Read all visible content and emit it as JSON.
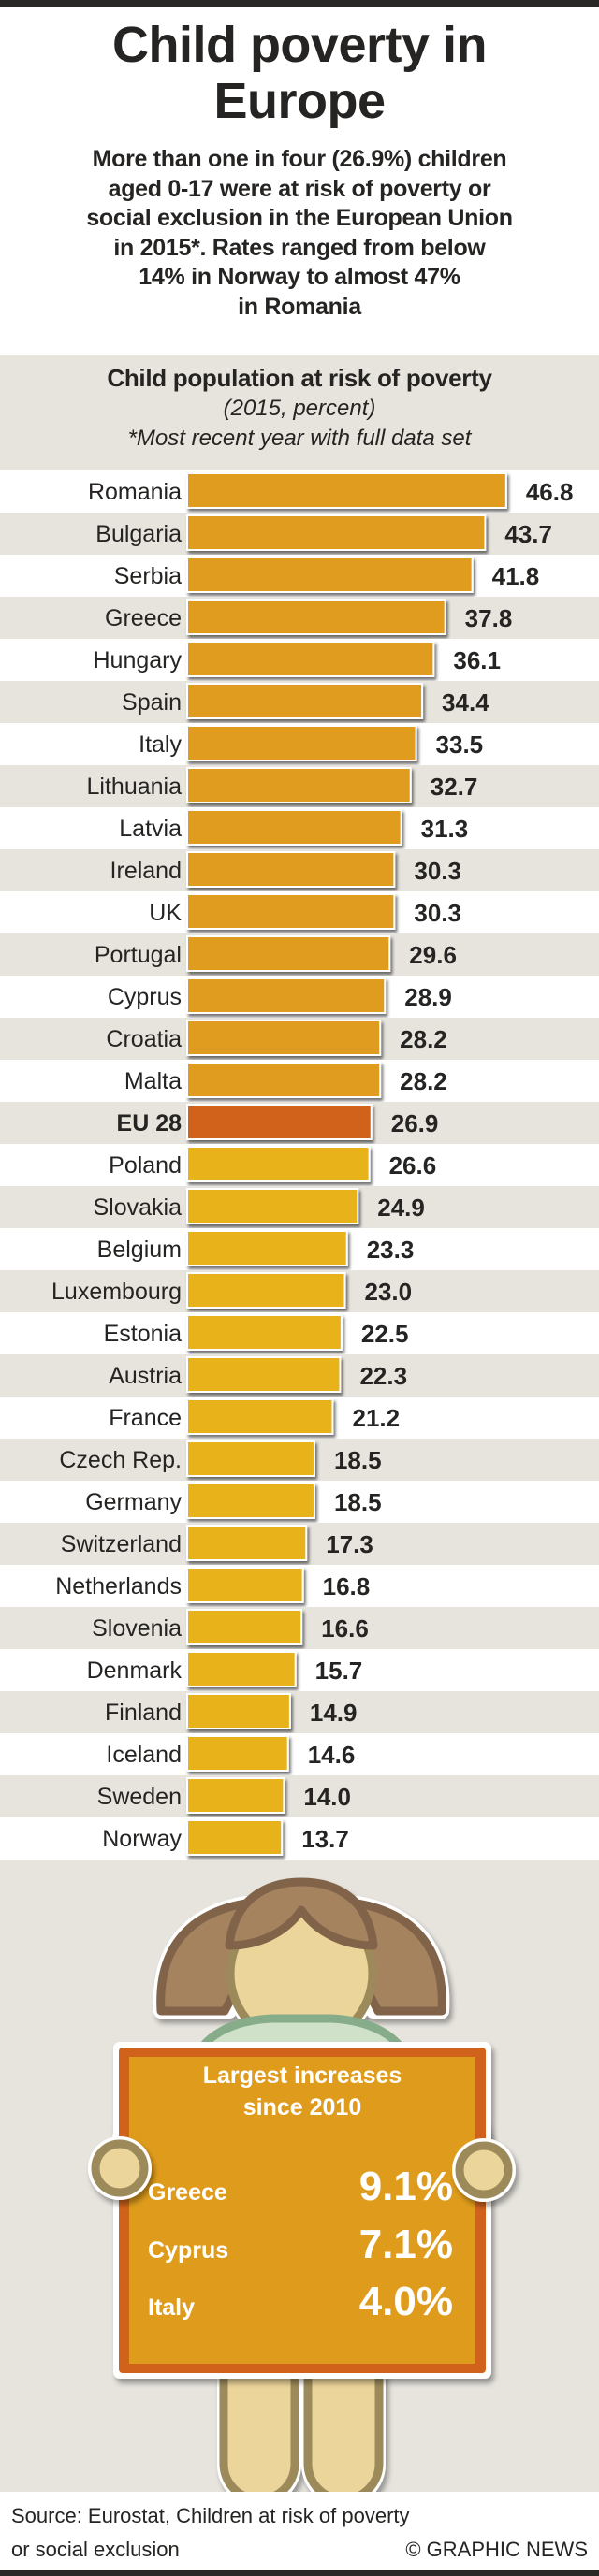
{
  "header": {
    "title_lines": [
      "Child poverty in",
      "Europe"
    ],
    "intro_lines": [
      "More than one in four (26.9%) children",
      "aged 0-17 were at risk of poverty or",
      "social exclusion in the European Union",
      "in 2015*. Rates ranged from below",
      "14% in Norway to almost 47%",
      "in Romania"
    ]
  },
  "colors": {
    "above_eu": "#df9c1f",
    "eu_average": "#d1621c",
    "below_eu": "#e8b31a",
    "row_alt": "#e7e4de",
    "text": "#262422"
  },
  "chart_data": {
    "type": "bar",
    "orientation": "horizontal",
    "title": "Child population at risk of poverty",
    "subtitle": "(2015, percent)",
    "note": "*Most recent year with full data set",
    "xlabel": "",
    "ylabel": "",
    "xlim": [
      0,
      50
    ],
    "grid": false,
    "highlight": "EU 28",
    "categories": [
      "Romania",
      "Bulgaria",
      "Serbia",
      "Greece",
      "Hungary",
      "Spain",
      "Italy",
      "Lithuania",
      "Latvia",
      "Ireland",
      "UK",
      "Portugal",
      "Cyprus",
      "Croatia",
      "Malta",
      "EU 28",
      "Poland",
      "Slovakia",
      "Belgium",
      "Luxembourg",
      "Estonia",
      "Austria",
      "France",
      "Czech Rep.",
      "Germany",
      "Switzerland",
      "Netherlands",
      "Slovenia",
      "Denmark",
      "Finland",
      "Iceland",
      "Sweden",
      "Norway"
    ],
    "values": [
      46.8,
      43.7,
      41.8,
      37.8,
      36.1,
      34.4,
      33.5,
      32.7,
      31.3,
      30.3,
      30.3,
      29.6,
      28.9,
      28.2,
      28.2,
      26.9,
      26.6,
      24.9,
      23.3,
      23.0,
      22.5,
      22.3,
      21.2,
      18.5,
      18.5,
      17.3,
      16.8,
      16.6,
      15.7,
      14.9,
      14.6,
      14.0,
      13.7
    ],
    "labels": [
      "46.8",
      "43.7",
      "41.8",
      "37.8",
      "36.1",
      "34.4",
      "33.5",
      "32.7",
      "31.3",
      "30.3",
      "30.3",
      "29.6",
      "28.9",
      "28.2",
      "28.2",
      "26.9",
      "26.6",
      "24.9",
      "23.3",
      "23.0",
      "22.5",
      "22.3",
      "21.2",
      "18.5",
      "18.5",
      "17.3",
      "16.8",
      "16.6",
      "15.7",
      "14.9",
      "14.6",
      "14.0",
      "13.7"
    ]
  },
  "sign": {
    "heading_lines": [
      "Largest increases",
      "since 2010"
    ],
    "rows": [
      {
        "country": "Greece",
        "value": "9.1%"
      },
      {
        "country": "Cyprus",
        "value": "7.1%"
      },
      {
        "country": "Italy",
        "value": "4.0%"
      }
    ]
  },
  "footer": {
    "source_lines": [
      "Source: Eurostat, Children at risk of poverty",
      "or social exclusion"
    ],
    "credit": "© GRAPHIC NEWS"
  }
}
